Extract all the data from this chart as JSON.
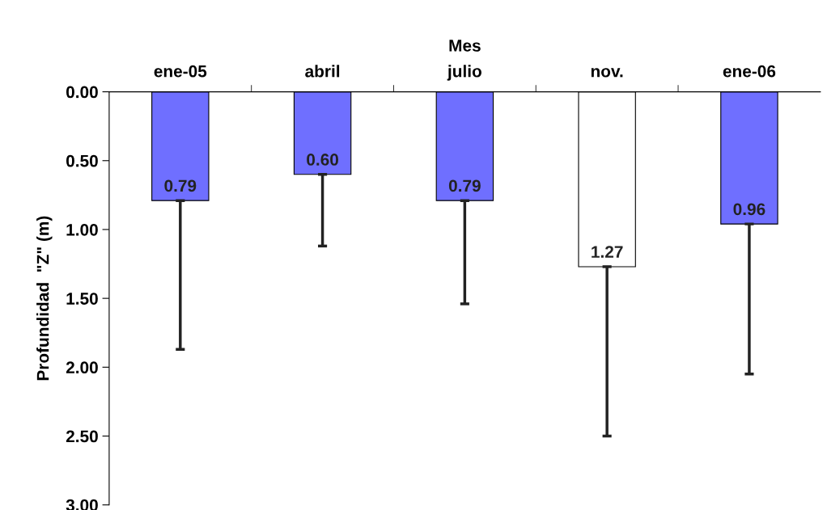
{
  "chart_data": {
    "type": "bar",
    "xlabel": "Mes",
    "ylabel": "Profundidad  \"Z\" (m)",
    "categories": [
      "ene-05",
      "abril",
      "julio",
      "nov.",
      "ene-06"
    ],
    "values": [
      0.79,
      0.6,
      0.79,
      1.27,
      0.96
    ],
    "colors": [
      "#6f6fff",
      "#6f6fff",
      "#6f6fff",
      "#ffffff",
      "#6f6fff"
    ],
    "errors": [
      [
        0.79,
        1.87
      ],
      [
        0.6,
        1.12
      ],
      [
        0.79,
        1.54
      ],
      [
        1.27,
        2.5
      ],
      [
        0.96,
        2.05
      ]
    ],
    "value_labels": [
      "0.79",
      "0.60",
      "0.79",
      "1.27",
      "0.96"
    ],
    "ylim": [
      3.0,
      0.0
    ],
    "yticks": [
      {
        "value": 0,
        "label": "0.00"
      },
      {
        "value": 0.5,
        "label": "0.50"
      },
      {
        "value": 1,
        "label": "1.00"
      },
      {
        "value": 1.5,
        "label": "1.50"
      },
      {
        "value": 2,
        "label": "2.00"
      },
      {
        "value": 2.5,
        "label": "2.50"
      },
      {
        "value": 3,
        "label": "3.00"
      }
    ],
    "grid": false,
    "legend": false
  }
}
